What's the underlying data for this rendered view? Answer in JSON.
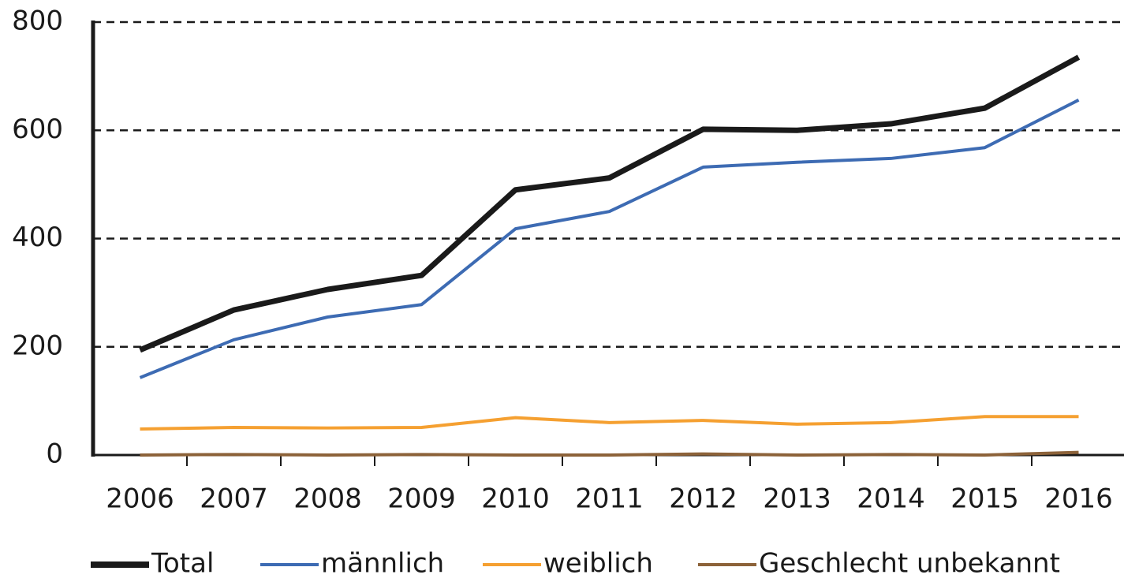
{
  "chart_data": {
    "type": "line",
    "categories": [
      "2006",
      "2007",
      "2008",
      "2009",
      "2010",
      "2011",
      "2012",
      "2013",
      "2014",
      "2015",
      "2016"
    ],
    "series": [
      {
        "name": "Total",
        "color": "#1a1a1a",
        "values": [
          194,
          268,
          306,
          332,
          490,
          512,
          602,
          600,
          612,
          641,
          735
        ]
      },
      {
        "name": "männlich",
        "color": "#3d6bb3",
        "values": [
          143,
          213,
          255,
          278,
          418,
          450,
          532,
          541,
          548,
          568,
          656
        ]
      },
      {
        "name": "weiblich",
        "color": "#f5a031",
        "values": [
          48,
          51,
          50,
          51,
          69,
          60,
          64,
          57,
          60,
          71,
          71
        ]
      },
      {
        "name": "Geschlecht unbekannt",
        "color": "#8c6239",
        "values": [
          0,
          1,
          0,
          1,
          0,
          0,
          2,
          0,
          1,
          0,
          5
        ]
      }
    ],
    "ylim": [
      0,
      800
    ],
    "yticks": [
      0,
      200,
      400,
      600,
      800
    ],
    "grid": true,
    "legend": "bottom"
  }
}
